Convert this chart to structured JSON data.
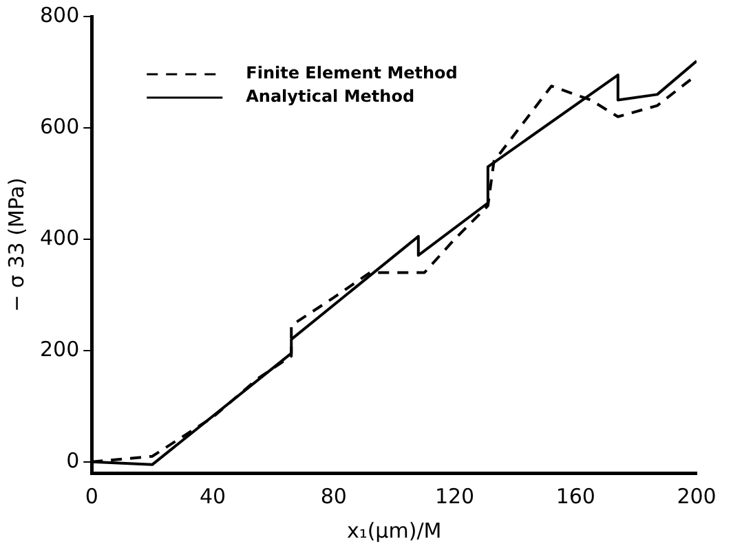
{
  "chart_data": {
    "type": "line",
    "xlabel": "x₁(μm)/M",
    "ylabel": "− σ 33 (MPa)",
    "xlim": [
      0,
      200
    ],
    "ylim": [
      -20,
      800
    ],
    "xticks": [
      0,
      40,
      80,
      120,
      160,
      200
    ],
    "yticks": [
      0,
      200,
      400,
      600,
      800
    ],
    "grid": false,
    "legend": "top left",
    "marker": "none",
    "series": [
      {
        "name": "Finite Element Method",
        "color": "#000000",
        "line_style": "dashed",
        "x": [
          0,
          20,
          40,
          55,
          66,
          66,
          80,
          92,
          110,
          120,
          131,
          133,
          152,
          165,
          174,
          187,
          200
        ],
        "values": [
          0,
          10,
          80,
          150,
          190,
          245,
          295,
          340,
          340,
          400,
          460,
          540,
          675,
          650,
          620,
          640,
          695
        ]
      },
      {
        "name": "Analytical Method",
        "color": "#000000",
        "line_style": "solid",
        "x": [
          0,
          20,
          66,
          66,
          108,
          108,
          131,
          131,
          174,
          174,
          187,
          200
        ],
        "values": [
          0,
          -5,
          195,
          220,
          405,
          371,
          465,
          530,
          695,
          650,
          660,
          720
        ]
      }
    ]
  }
}
